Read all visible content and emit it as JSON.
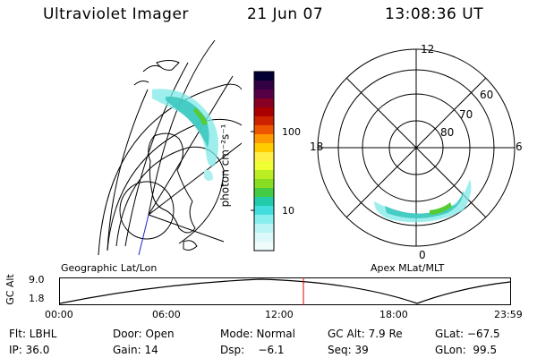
{
  "header": {
    "title": "Ultraviolet Imager",
    "date": "21 Jun 07",
    "time": "13:08:36 UT"
  },
  "colorbar": {
    "unit_label": "photon cm⁻²s⁻¹",
    "ticks": [
      "100",
      "10"
    ],
    "colors": [
      "#000033",
      "#330044",
      "#550044",
      "#880022",
      "#aa0000",
      "#cc2200",
      "#ee5500",
      "#ff9900",
      "#ffcc00",
      "#ffee44",
      "#eeff33",
      "#bbee22",
      "#88dd22",
      "#44cc44",
      "#22ccaa",
      "#44dddd",
      "#88eeee",
      "#bbf4f4",
      "#ddf8f8",
      "#eefcfc"
    ]
  },
  "polar_plot": {
    "labels": {
      "top": "12",
      "bottom": "0",
      "left": "18",
      "right": "6"
    },
    "lat_labels": [
      "60",
      "70",
      "80"
    ]
  },
  "map_labels": {
    "left": "Geographic Lat/Lon",
    "right": "Apex MLat/MLT"
  },
  "timeline": {
    "y_label": "GC Alt",
    "y_ticks": [
      "9.0",
      "1.8"
    ],
    "x_ticks": [
      "00:00",
      "06:00",
      "12:00",
      "18:00",
      "23:59"
    ],
    "marker_color": "#dd0000"
  },
  "footer": {
    "row1": [
      "Flt: LBHL",
      "Door: Open",
      "Mode: Normal",
      "GC Alt: 7.9 Re",
      "GLat: −67.5"
    ],
    "row2": [
      "IP: 36.0",
      "Gain: 14",
      "Dsp:    −6.1",
      "Seq: 39",
      "GLon:  99.5"
    ]
  }
}
